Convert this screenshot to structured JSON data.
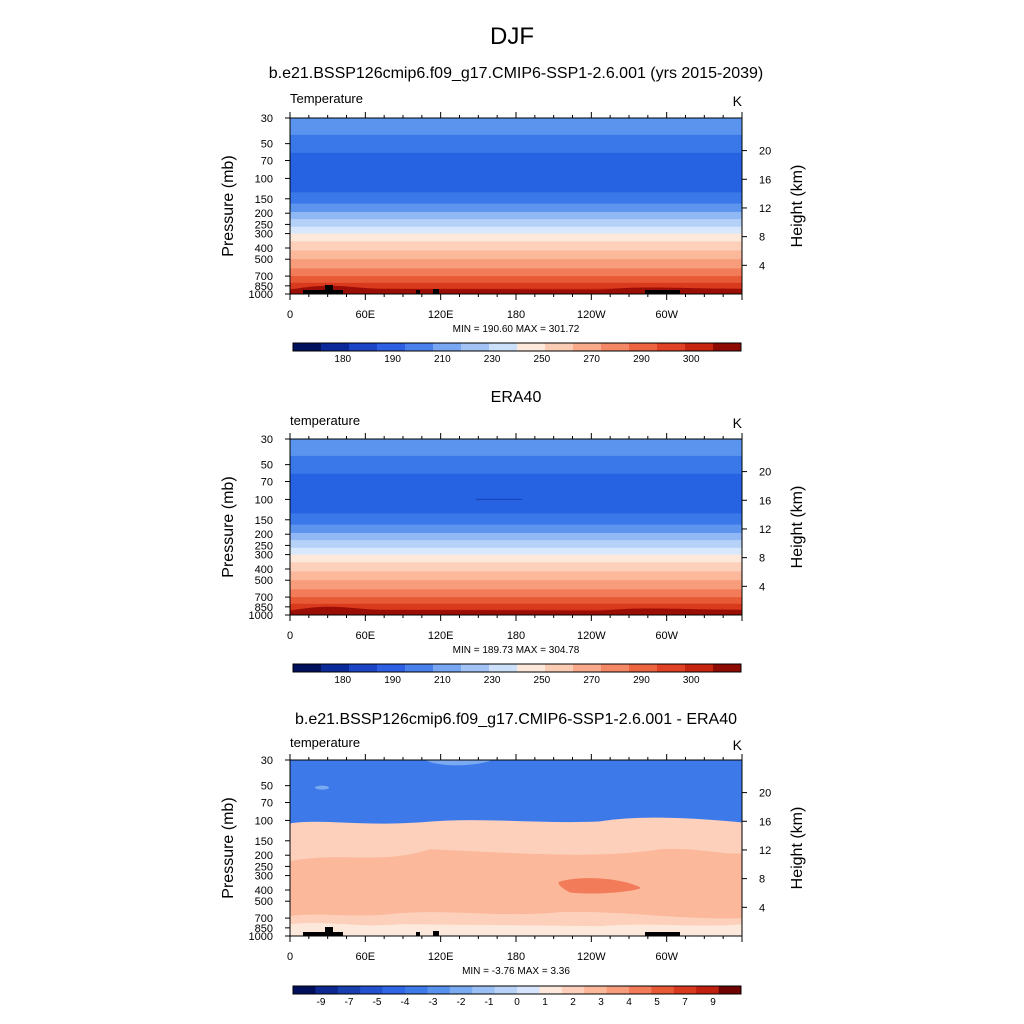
{
  "page_title": "DJF",
  "ui": {
    "colors": {
      "positive_ramp": [
        "#fde8dc",
        "#fcd0bb",
        "#fbb89b",
        "#f79d7c",
        "#f27c59",
        "#e85a36",
        "#d9391c",
        "#c0200f",
        "#9b0e06",
        "#6e0302"
      ],
      "negative_ramp": [
        "#d6e5fb",
        "#b9d3f8",
        "#9ac0f5",
        "#79aaf2",
        "#5991ee",
        "#3e79ea",
        "#2f66e6",
        "#2352d0",
        "#1840b0",
        "#0d2890",
        "#031b74",
        "#000f5a"
      ],
      "land_mask": "#000000"
    }
  },
  "chart_data": [
    {
      "type": "heatmap",
      "title": "b.e21.BSSP126cmip6.f09_g17.CMIP6-SSP1-2.6.001 (yrs 2015-2039)",
      "left_label": "Temperature",
      "units": "K",
      "ylabel": "Pressure (mb)",
      "ylabel_right": "Height (km)",
      "x_ticks": [
        "0",
        "60E",
        "120E",
        "180",
        "120W",
        "60W"
      ],
      "y_ticks": [
        "30",
        "50",
        "70",
        "100",
        "150",
        "200",
        "250",
        "300",
        "400",
        "500",
        "700",
        "850",
        "1000"
      ],
      "y_right_ticks": [
        "20",
        "16",
        "12",
        "8",
        "4"
      ],
      "stats": "MIN = 190.60  MAX = 301.72",
      "colorbar_labels": [
        "180",
        "190",
        "210",
        "230",
        "250",
        "270",
        "290",
        "300"
      ],
      "field": "absolute"
    },
    {
      "type": "heatmap",
      "title": "ERA40",
      "left_label": "temperature",
      "units": "K",
      "ylabel": "Pressure (mb)",
      "ylabel_right": "Height (km)",
      "x_ticks": [
        "0",
        "60E",
        "120E",
        "180",
        "120W",
        "60W"
      ],
      "y_ticks": [
        "30",
        "50",
        "70",
        "100",
        "150",
        "200",
        "250",
        "300",
        "400",
        "500",
        "700",
        "850",
        "1000"
      ],
      "y_right_ticks": [
        "20",
        "16",
        "12",
        "8",
        "4"
      ],
      "stats": "MIN = 189.73  MAX = 304.78",
      "colorbar_labels": [
        "180",
        "190",
        "210",
        "230",
        "250",
        "270",
        "290",
        "300"
      ],
      "field": "absolute"
    },
    {
      "type": "heatmap",
      "title": "b.e21.BSSP126cmip6.f09_g17.CMIP6-SSP1-2.6.001 - ERA40",
      "left_label": "temperature",
      "units": "K",
      "ylabel": "Pressure (mb)",
      "ylabel_right": "Height (km)",
      "x_ticks": [
        "0",
        "60E",
        "120E",
        "180",
        "120W",
        "60W"
      ],
      "y_ticks": [
        "30",
        "50",
        "70",
        "100",
        "150",
        "200",
        "250",
        "300",
        "400",
        "500",
        "700",
        "850",
        "1000"
      ],
      "y_right_ticks": [
        "20",
        "16",
        "12",
        "8",
        "4"
      ],
      "stats": "MIN = -3.76  MAX =  3.36",
      "colorbar_labels": [
        "-9",
        "-7",
        "-5",
        "-4",
        "-3",
        "-2",
        "-1",
        "0",
        "1",
        "2",
        "3",
        "4",
        "5",
        "7",
        "9"
      ],
      "field": "difference"
    }
  ]
}
